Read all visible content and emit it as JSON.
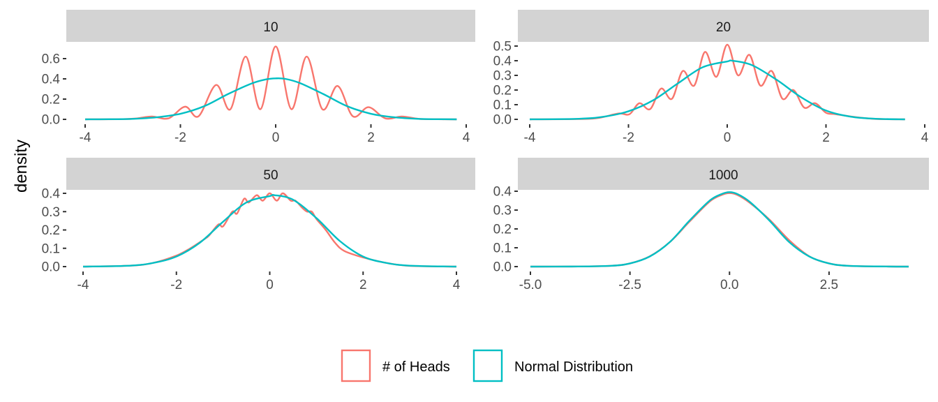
{
  "chart_data": {
    "type": "line",
    "ylabel": "density",
    "legend": {
      "placement": "bottom",
      "entries": [
        {
          "label": "# of Heads",
          "color": "#F8766D"
        },
        {
          "label": "Normal Distribution",
          "color": "#00BFC4"
        }
      ]
    },
    "panels": [
      {
        "strip": "10",
        "xlim": [
          -4,
          4
        ],
        "ylim": [
          0,
          0.7
        ],
        "xticks": [
          -4,
          -2,
          0,
          2,
          4
        ],
        "xtick_labels": [
          "-4",
          "-2",
          "0",
          "2",
          "4"
        ],
        "yticks": [
          0,
          0.2,
          0.4,
          0.6
        ],
        "ytick_labels": [
          "0.0",
          "0.2",
          "0.4",
          "0.6"
        ],
        "series": [
          {
            "name": "# of Heads",
            "color": "#F8766D",
            "x": [
              -4,
              -3.2,
              -2.9,
              -2.6,
              -2.25,
              -1.9,
              -1.62,
              -1.25,
              -0.95,
              -0.63,
              -0.32,
              0,
              0.33,
              0.65,
              0.98,
              1.3,
              1.62,
              1.95,
              2.3,
              2.65,
              3.0,
              3.4,
              3.8
            ],
            "y": [
              0,
              0.002,
              0.01,
              0.028,
              0.01,
              0.125,
              0.03,
              0.34,
              0.1,
              0.62,
              0.1,
              0.72,
              0.1,
              0.62,
              0.1,
              0.33,
              0.03,
              0.12,
              0.01,
              0.028,
              0.005,
              0.001,
              0
            ]
          },
          {
            "name": "Normal Distribution",
            "color": "#00BFC4",
            "x": [
              -4,
              -3.5,
              -3,
              -2.5,
              -2,
              -1.5,
              -1,
              -0.5,
              -0.2,
              0,
              0.2,
              0.5,
              1,
              1.5,
              2,
              2.5,
              3,
              3.5,
              3.8
            ],
            "y": [
              0,
              0.001,
              0.005,
              0.02,
              0.055,
              0.13,
              0.25,
              0.355,
              0.395,
              0.405,
              0.4,
              0.36,
              0.25,
              0.13,
              0.055,
              0.02,
              0.005,
              0.001,
              0
            ]
          }
        ]
      },
      {
        "strip": "20",
        "xlim": [
          -4,
          4
        ],
        "ylim": [
          0,
          0.5
        ],
        "xticks": [
          -4,
          -2,
          0,
          2,
          4
        ],
        "xtick_labels": [
          "-4",
          "-2",
          "0",
          "2",
          "4"
        ],
        "yticks": [
          0,
          0.1,
          0.2,
          0.3,
          0.4,
          0.5
        ],
        "ytick_labels": [
          "0.0",
          "0.1",
          "0.2",
          "0.3",
          "0.4",
          "0.5"
        ],
        "series": [
          {
            "name": "# of Heads",
            "color": "#F8766D",
            "x": [
              -4,
              -3,
              -2.6,
              -2.2,
              -1.98,
              -1.78,
              -1.56,
              -1.34,
              -1.12,
              -0.9,
              -0.67,
              -0.45,
              -0.22,
              0,
              0.22,
              0.45,
              0.67,
              0.9,
              1.12,
              1.34,
              1.56,
              1.78,
              2.0,
              2.2,
              2.6,
              3,
              3.6
            ],
            "y": [
              0,
              0.002,
              0.01,
              0.04,
              0.035,
              0.11,
              0.07,
              0.21,
              0.14,
              0.33,
              0.23,
              0.46,
              0.29,
              0.51,
              0.3,
              0.44,
              0.23,
              0.33,
              0.14,
              0.2,
              0.08,
              0.11,
              0.045,
              0.035,
              0.015,
              0.003,
              0
            ]
          },
          {
            "name": "Normal Distribution",
            "color": "#00BFC4",
            "x": [
              -4,
              -3,
              -2.5,
              -2,
              -1.5,
              -1,
              -0.5,
              0,
              0.1,
              0.5,
              1,
              1.5,
              2,
              2.5,
              3,
              3.6
            ],
            "y": [
              0,
              0.004,
              0.018,
              0.055,
              0.13,
              0.245,
              0.355,
              0.395,
              0.4,
              0.37,
              0.27,
              0.15,
              0.06,
              0.018,
              0.004,
              0
            ]
          }
        ]
      },
      {
        "strip": "50",
        "xlim": [
          -4,
          4
        ],
        "ylim": [
          0,
          0.4
        ],
        "xticks": [
          -4,
          -2,
          0,
          2,
          4
        ],
        "xtick_labels": [
          "-4",
          "-2",
          "0",
          "2",
          "4"
        ],
        "yticks": [
          0,
          0.1,
          0.2,
          0.3,
          0.4
        ],
        "ytick_labels": [
          "0.0",
          "0.1",
          "0.2",
          "0.3",
          "0.4"
        ],
        "series": [
          {
            "name": "# of Heads",
            "color": "#F8766D",
            "x": [
              -4,
              -3,
              -2.5,
              -2,
              -1.7,
              -1.4,
              -1.3,
              -1.1,
              -1.0,
              -0.8,
              -0.7,
              -0.55,
              -0.45,
              -0.28,
              -0.15,
              0,
              0.15,
              0.28,
              0.45,
              0.55,
              0.7,
              0.8,
              0.9,
              1.0,
              1.2,
              1.4,
              1.6,
              2,
              2.5,
              3,
              4
            ],
            "y": [
              0,
              0.005,
              0.02,
              0.06,
              0.1,
              0.15,
              0.17,
              0.23,
              0.22,
              0.3,
              0.29,
              0.37,
              0.35,
              0.39,
              0.36,
              0.4,
              0.36,
              0.4,
              0.36,
              0.36,
              0.32,
              0.3,
              0.3,
              0.26,
              0.2,
              0.13,
              0.085,
              0.05,
              0.02,
              0.004,
              0
            ]
          },
          {
            "name": "Normal Distribution",
            "color": "#00BFC4",
            "x": [
              -4,
              -3,
              -2.5,
              -2,
              -1.5,
              -1,
              -0.5,
              0,
              0.1,
              0.5,
              1,
              1.5,
              2,
              2.5,
              3,
              4
            ],
            "y": [
              0,
              0.005,
              0.02,
              0.055,
              0.13,
              0.245,
              0.35,
              0.385,
              0.39,
              0.365,
              0.265,
              0.14,
              0.055,
              0.02,
              0.005,
              0
            ]
          }
        ]
      },
      {
        "strip": "1000",
        "xlim": [
          -5,
          4.5
        ],
        "ylim": [
          0,
          0.4
        ],
        "xticks": [
          -5,
          -2.5,
          0,
          2.5
        ],
        "xtick_labels": [
          "-5.0",
          "-2.5",
          "0.0",
          "2.5"
        ],
        "yticks": [
          0,
          0.1,
          0.2,
          0.3,
          0.4
        ],
        "ytick_labels": [
          "0.0",
          "0.1",
          "0.2",
          "0.3",
          "0.4"
        ],
        "series": [
          {
            "name": "# of Heads",
            "color": "#F8766D",
            "x": [
              -5,
              -4,
              -3,
              -2.5,
              -2,
              -1.5,
              -1,
              -0.5,
              -0.2,
              0,
              0.2,
              0.5,
              1,
              1.5,
              2,
              2.5,
              3,
              4,
              4.5
            ],
            "y": [
              0,
              0.0005,
              0.004,
              0.017,
              0.055,
              0.13,
              0.24,
              0.345,
              0.38,
              0.39,
              0.38,
              0.34,
              0.25,
              0.14,
              0.055,
              0.017,
              0.004,
              0.0005,
              0
            ]
          },
          {
            "name": "Normal Distribution",
            "color": "#00BFC4",
            "x": [
              -5,
              -4,
              -3,
              -2.5,
              -2,
              -1.5,
              -1,
              -0.5,
              -0.2,
              0,
              0.2,
              0.5,
              1,
              1.5,
              2,
              2.5,
              3,
              4,
              4.5
            ],
            "y": [
              0,
              0.0005,
              0.004,
              0.017,
              0.054,
              0.13,
              0.245,
              0.35,
              0.385,
              0.395,
              0.385,
              0.345,
              0.245,
              0.13,
              0.054,
              0.017,
              0.004,
              0.0005,
              0
            ]
          }
        ]
      }
    ]
  }
}
